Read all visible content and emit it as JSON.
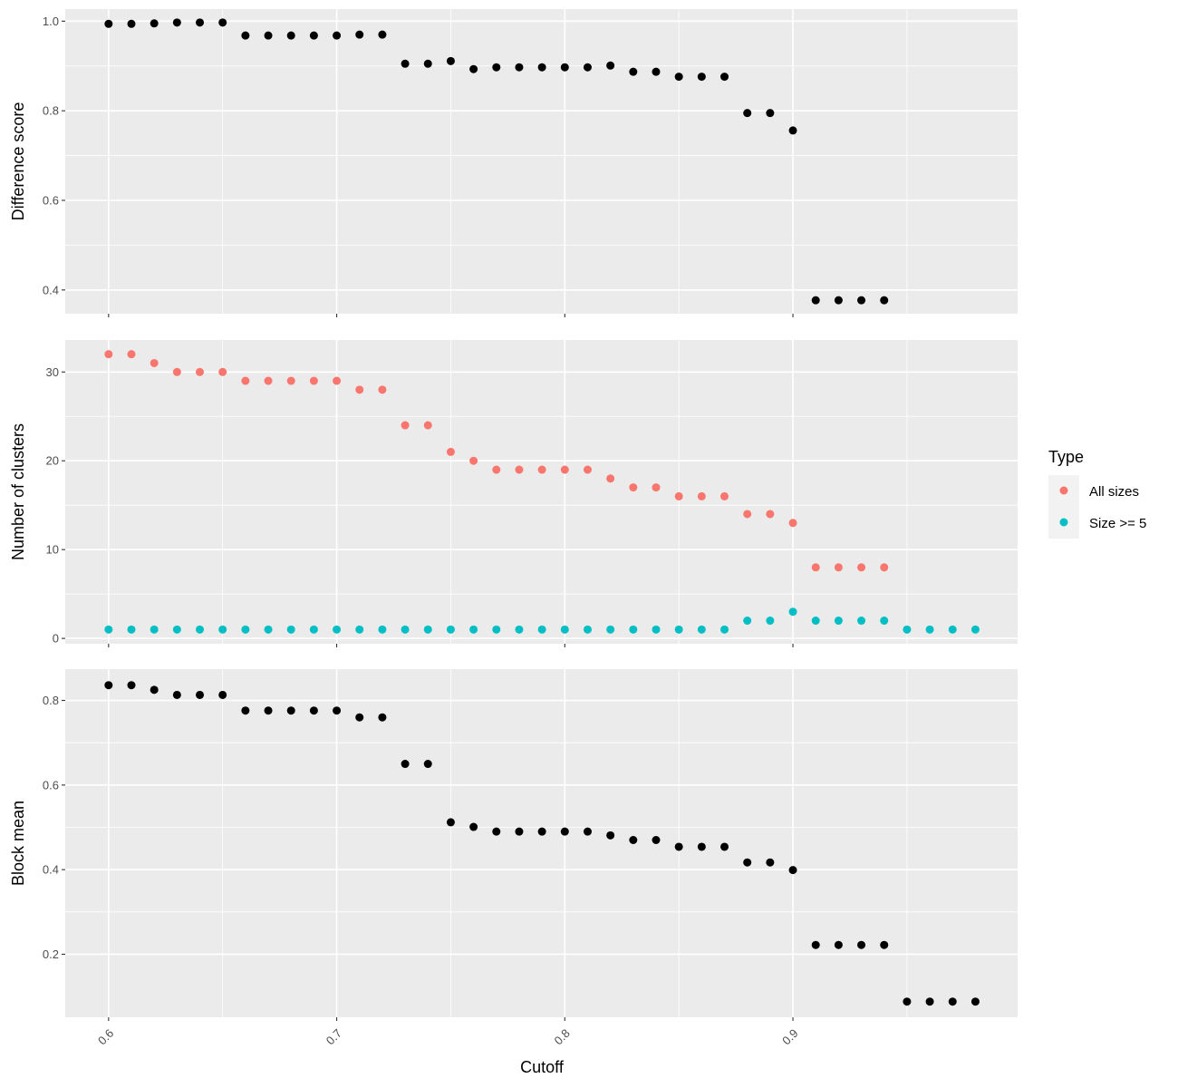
{
  "chart_data": {
    "type": "scatter",
    "xlabel": "Cutoff",
    "x_ticks": [
      "0.6",
      "0.7",
      "0.8",
      "0.9"
    ],
    "x_tick_values": [
      0.6,
      0.7,
      0.8,
      0.9
    ],
    "xlim": [
      0.581,
      0.9985
    ],
    "panels": [
      {
        "ylabel": "Difference score",
        "ylim": [
          0.347,
          1.027
        ],
        "y_ticks": [
          0.4,
          0.6,
          0.8,
          1.0
        ],
        "y_tick_labels": [
          "0.4",
          "0.6",
          "0.8",
          "1.0"
        ],
        "series": [
          {
            "color": "#000000",
            "x": [
              0.6,
              0.61,
              0.62,
              0.63,
              0.64,
              0.65,
              0.66,
              0.67,
              0.68,
              0.69,
              0.7,
              0.71,
              0.72,
              0.73,
              0.74,
              0.75,
              0.76,
              0.77,
              0.78,
              0.79,
              0.8,
              0.81,
              0.82,
              0.83,
              0.84,
              0.85,
              0.86,
              0.87,
              0.88,
              0.89,
              0.9,
              0.91,
              0.92,
              0.93,
              0.94
            ],
            "y": [
              0.994,
              0.994,
              0.995,
              0.997,
              0.997,
              0.997,
              0.968,
              0.968,
              0.968,
              0.968,
              0.968,
              0.97,
              0.97,
              0.905,
              0.905,
              0.911,
              0.893,
              0.897,
              0.897,
              0.897,
              0.897,
              0.897,
              0.901,
              0.887,
              0.887,
              0.876,
              0.876,
              0.876,
              0.795,
              0.795,
              0.756,
              0.377,
              0.377,
              0.377,
              0.377
            ]
          }
        ]
      },
      {
        "ylabel": "Number of clusters",
        "ylim": [
          -0.6,
          33.6
        ],
        "y_ticks": [
          0,
          10,
          20,
          30
        ],
        "y_tick_labels": [
          "0",
          "10",
          "20",
          "30"
        ],
        "series": [
          {
            "name": "All sizes",
            "color": "#f8766d",
            "x": [
              0.6,
              0.61,
              0.62,
              0.63,
              0.64,
              0.65,
              0.66,
              0.67,
              0.68,
              0.69,
              0.7,
              0.71,
              0.72,
              0.73,
              0.74,
              0.75,
              0.76,
              0.77,
              0.78,
              0.79,
              0.8,
              0.81,
              0.82,
              0.83,
              0.84,
              0.85,
              0.86,
              0.87,
              0.88,
              0.89,
              0.9,
              0.91,
              0.92,
              0.93,
              0.94
            ],
            "y": [
              32,
              32,
              31,
              30,
              30,
              30,
              29,
              29,
              29,
              29,
              29,
              28,
              28,
              24,
              24,
              21,
              20,
              19,
              19,
              19,
              19,
              19,
              18,
              17,
              17,
              16,
              16,
              16,
              14,
              14,
              13,
              8,
              8,
              8,
              8
            ]
          },
          {
            "name": "Size >= 5",
            "color": "#00bfc4",
            "x": [
              0.6,
              0.61,
              0.62,
              0.63,
              0.64,
              0.65,
              0.66,
              0.67,
              0.68,
              0.69,
              0.7,
              0.71,
              0.72,
              0.73,
              0.74,
              0.75,
              0.76,
              0.77,
              0.78,
              0.79,
              0.8,
              0.81,
              0.82,
              0.83,
              0.84,
              0.85,
              0.86,
              0.87,
              0.88,
              0.89,
              0.9,
              0.91,
              0.92,
              0.93,
              0.94,
              0.95,
              0.96,
              0.97,
              0.98
            ],
            "y": [
              1,
              1,
              1,
              1,
              1,
              1,
              1,
              1,
              1,
              1,
              1,
              1,
              1,
              1,
              1,
              1,
              1,
              1,
              1,
              1,
              1,
              1,
              1,
              1,
              1,
              1,
              1,
              1,
              2,
              2,
              3,
              2,
              2,
              2,
              2,
              1,
              1,
              1,
              1
            ]
          }
        ]
      },
      {
        "ylabel": "Block mean",
        "ylim": [
          0.051,
          0.874
        ],
        "y_ticks": [
          0.2,
          0.4,
          0.6,
          0.8
        ],
        "y_tick_labels": [
          "0.2",
          "0.4",
          "0.6",
          "0.8"
        ],
        "series": [
          {
            "color": "#000000",
            "x": [
              0.6,
              0.61,
              0.62,
              0.63,
              0.64,
              0.65,
              0.66,
              0.67,
              0.68,
              0.69,
              0.7,
              0.71,
              0.72,
              0.73,
              0.74,
              0.75,
              0.76,
              0.77,
              0.78,
              0.79,
              0.8,
              0.81,
              0.82,
              0.83,
              0.84,
              0.85,
              0.86,
              0.87,
              0.88,
              0.89,
              0.9,
              0.91,
              0.92,
              0.93,
              0.94,
              0.95,
              0.96,
              0.97,
              0.98
            ],
            "y": [
              0.836,
              0.836,
              0.825,
              0.813,
              0.813,
              0.813,
              0.776,
              0.776,
              0.776,
              0.776,
              0.776,
              0.76,
              0.76,
              0.65,
              0.65,
              0.512,
              0.501,
              0.49,
              0.49,
              0.49,
              0.49,
              0.49,
              0.481,
              0.47,
              0.47,
              0.454,
              0.454,
              0.454,
              0.417,
              0.417,
              0.399,
              0.222,
              0.222,
              0.222,
              0.222,
              0.088,
              0.088,
              0.088,
              0.088
            ]
          }
        ]
      }
    ],
    "legend": {
      "title": "Type",
      "placement": "right",
      "entries": [
        {
          "label": "All sizes",
          "color": "#f8766d"
        },
        {
          "label": "Size >= 5",
          "color": "#00bfc4"
        }
      ]
    },
    "grid": true,
    "panel_background": "#ebebeb",
    "grid_color": "#ffffff"
  }
}
